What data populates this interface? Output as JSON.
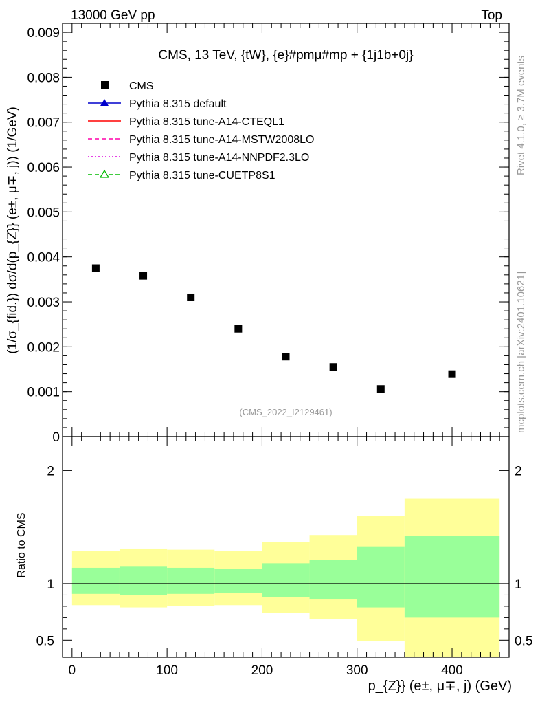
{
  "header": {
    "beam": "13000 GeV pp",
    "process": "Top"
  },
  "side_labels": {
    "rivet": "Rivet 4.1.0, ≥ 3.7M events",
    "mcplots": "mcplots.cern.ch [arXiv:2401.10621]"
  },
  "chart_data": [
    {
      "type": "scatter",
      "panel": "main",
      "title": "CMS, 13 TeV, {tW}, {e}#pmμ#mp + {1j1b+0j}",
      "ylabel": "(1/σ_{fid.}) dσ/d(p_{Z}} (e±, μ∓, j)) (1/GeV)",
      "xlim": [
        -10,
        460
      ],
      "ylim": [
        0,
        0.0092
      ],
      "yticks": [
        "0",
        "0.001",
        "0.002",
        "0.003",
        "0.004",
        "0.005",
        "0.006",
        "0.007",
        "0.008",
        "0.009"
      ],
      "watermark": "(CMS_2022_I2129461)",
      "legend": [
        {
          "label": "CMS",
          "style": "marker-square",
          "color": "#000000"
        },
        {
          "label": "Pythia 8.315 default",
          "style": "solid-triangle",
          "color": "#0000cc"
        },
        {
          "label": "Pythia 8.315 tune-A14-CTEQL1",
          "style": "solid",
          "color": "#ff0000"
        },
        {
          "label": "Pythia 8.315 tune-A14-MSTW2008LO",
          "style": "dashed",
          "color": "#ff00aa"
        },
        {
          "label": "Pythia 8.315 tune-A14-NNPDF2.3LO",
          "style": "dotted",
          "color": "#dd00dd"
        },
        {
          "label": "Pythia 8.315 tune-CUETP8S1",
          "style": "dashed-open-triangle",
          "color": "#00bb00"
        }
      ],
      "series": [
        {
          "name": "CMS",
          "x": [
            25,
            75,
            125,
            175,
            225,
            275,
            325,
            400
          ],
          "y": [
            0.00375,
            0.00358,
            0.0031,
            0.0024,
            0.00178,
            0.00155,
            0.00106,
            0.00139
          ]
        }
      ]
    },
    {
      "type": "area",
      "panel": "ratio",
      "ylabel": "Ratio to CMS",
      "xlabel": "p_{Z}} (e±, μ∓, j) (GeV)",
      "xlim": [
        -10,
        460
      ],
      "ylim": [
        0.35,
        2.3
      ],
      "xticks": [
        "0",
        "100",
        "200",
        "300",
        "400"
      ],
      "yticks": [
        "0.5",
        "1",
        "2"
      ],
      "bins": [
        {
          "lo": 0,
          "hi": 50,
          "yellow": [
            0.81,
            1.29
          ],
          "green": [
            0.91,
            1.14
          ]
        },
        {
          "lo": 50,
          "hi": 100,
          "yellow": [
            0.79,
            1.31
          ],
          "green": [
            0.9,
            1.15
          ]
        },
        {
          "lo": 100,
          "hi": 150,
          "yellow": [
            0.8,
            1.3
          ],
          "green": [
            0.91,
            1.14
          ]
        },
        {
          "lo": 150,
          "hi": 200,
          "yellow": [
            0.81,
            1.29
          ],
          "green": [
            0.92,
            1.13
          ]
        },
        {
          "lo": 200,
          "hi": 250,
          "yellow": [
            0.74,
            1.37
          ],
          "green": [
            0.88,
            1.18
          ]
        },
        {
          "lo": 250,
          "hi": 300,
          "yellow": [
            0.69,
            1.43
          ],
          "green": [
            0.86,
            1.21
          ]
        },
        {
          "lo": 300,
          "hi": 350,
          "yellow": [
            0.49,
            1.6
          ],
          "green": [
            0.79,
            1.33
          ]
        },
        {
          "lo": 350,
          "hi": 450,
          "yellow": [
            0.35,
            1.75
          ],
          "green": [
            0.7,
            1.42
          ]
        }
      ],
      "reference_line": 1
    }
  ],
  "colors": {
    "yellow_band": "#ffff99",
    "green_band": "#99ff99",
    "axis": "#000000"
  }
}
